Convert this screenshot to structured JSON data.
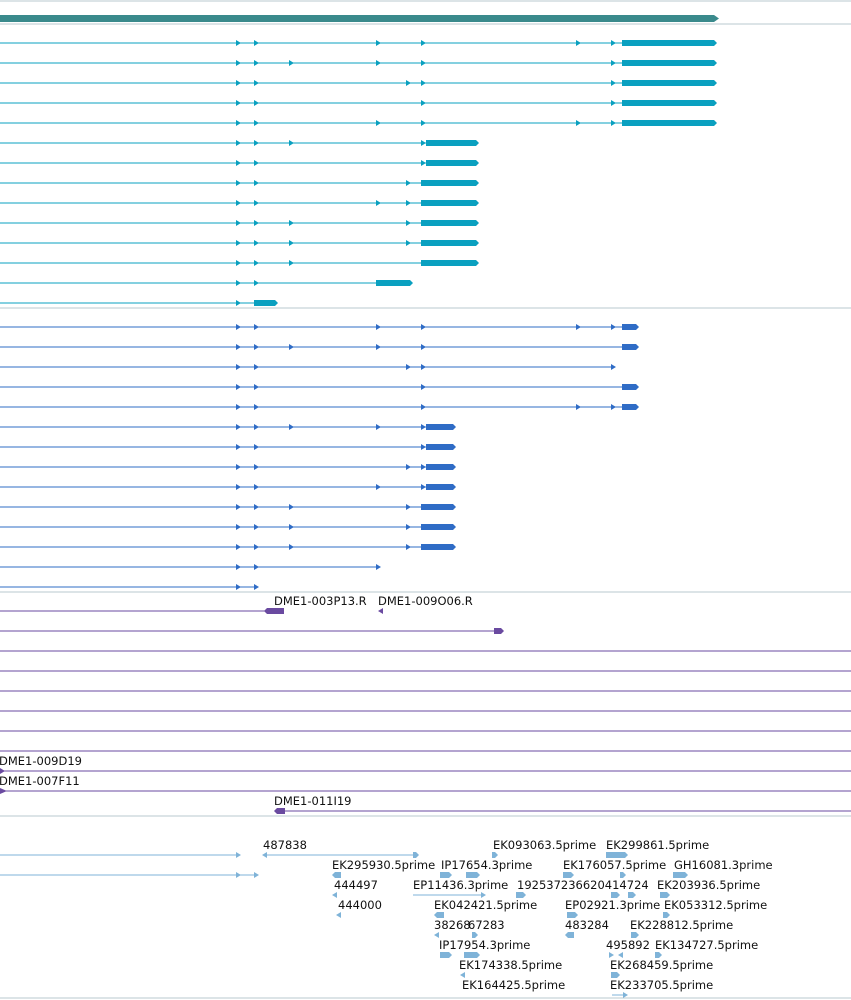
{
  "colors": {
    "gene": "#3a8a8c",
    "transcript_a": "#0aa0c0",
    "transcript_b": "#2f6cc6",
    "clone": "#6a4aa0",
    "est": "#7fb3d8",
    "divider": "#b8c8cf",
    "label": "#111111"
  },
  "clone_labels": [
    {
      "id": "c1",
      "text": "DME1-003P13.R"
    },
    {
      "id": "c2",
      "text": "DME1-009O06.R"
    },
    {
      "id": "c3",
      "text": "DME1-009D19"
    },
    {
      "id": "c4",
      "text": "DME1-007F11"
    },
    {
      "id": "c5",
      "text": "DME1-011I19"
    }
  ],
  "est_labels": [
    {
      "id": "e1",
      "text": "487838"
    },
    {
      "id": "e2",
      "text": "EK093063.5prime"
    },
    {
      "id": "e3",
      "text": "EK299861.5prime"
    },
    {
      "id": "e4",
      "text": "EK295930.5prime"
    },
    {
      "id": "e5",
      "text": "IP17654.3prime"
    },
    {
      "id": "e6",
      "text": "EK176057.5prime"
    },
    {
      "id": "e7",
      "text": "GH16081.3prime"
    },
    {
      "id": "e8",
      "text": "444497"
    },
    {
      "id": "e9",
      "text": "EP11436.3prime"
    },
    {
      "id": "e10",
      "text": "192537236620414724"
    },
    {
      "id": "e11",
      "text": "EK203936.5prime"
    },
    {
      "id": "e12",
      "text": "444000"
    },
    {
      "id": "e13",
      "text": "EK042421.5prime"
    },
    {
      "id": "e14",
      "text": "EP02921.3prime"
    },
    {
      "id": "e15",
      "text": "EK053312.5prime"
    },
    {
      "id": "e16",
      "text": "38268"
    },
    {
      "id": "e17",
      "text": "67283"
    },
    {
      "id": "e18",
      "text": "483284"
    },
    {
      "id": "e19",
      "text": "EK228812.5prime"
    },
    {
      "id": "e20",
      "text": "IP17954.3prime"
    },
    {
      "id": "e21",
      "text": "495892"
    },
    {
      "id": "e22",
      "text": "EK134727.5prime"
    },
    {
      "id": "e23",
      "text": "EK174338.5prime"
    },
    {
      "id": "e24",
      "text": "EK268459.5prime"
    },
    {
      "id": "e25",
      "text": "EK164425.5prime"
    },
    {
      "id": "e26",
      "text": "EK233705.5prime"
    }
  ]
}
